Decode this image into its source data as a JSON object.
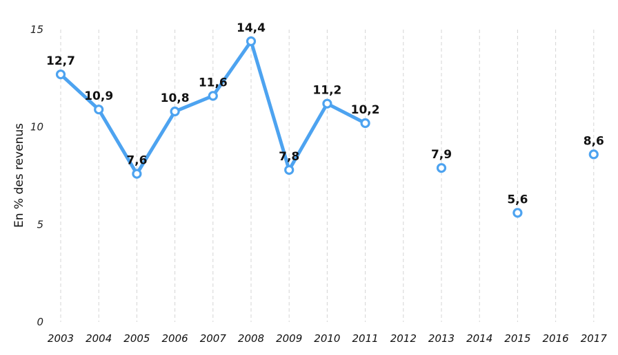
{
  "chart_data": {
    "type": "line",
    "title": "",
    "xlabel": "",
    "ylabel": "En % des revenus",
    "categories": [
      "2003",
      "2004",
      "2005",
      "2006",
      "2007",
      "2008",
      "2009",
      "2010",
      "2011",
      "2012",
      "2013",
      "2014",
      "2015",
      "2016",
      "2017"
    ],
    "series": [
      {
        "values": [
          12.7,
          10.9,
          7.6,
          10.8,
          11.6,
          14.4,
          7.8,
          11.2,
          10.2,
          null,
          7.9,
          null,
          5.6,
          null,
          8.6
        ],
        "data_labels": [
          "12,7",
          "10,9",
          "7,6",
          "10,8",
          "11,6",
          "14,4",
          "7,8",
          "11,2",
          "10,2",
          "",
          "7,9",
          "",
          "5,6",
          "",
          "8,6"
        ],
        "color": "#4da3f0"
      }
    ],
    "ylim": [
      0,
      15
    ],
    "yticks": [
      0,
      5,
      10,
      15
    ],
    "ytick_labels": [
      "0",
      "5",
      "10",
      "15"
    ],
    "grid": "vertical dashed",
    "legend": "none"
  }
}
